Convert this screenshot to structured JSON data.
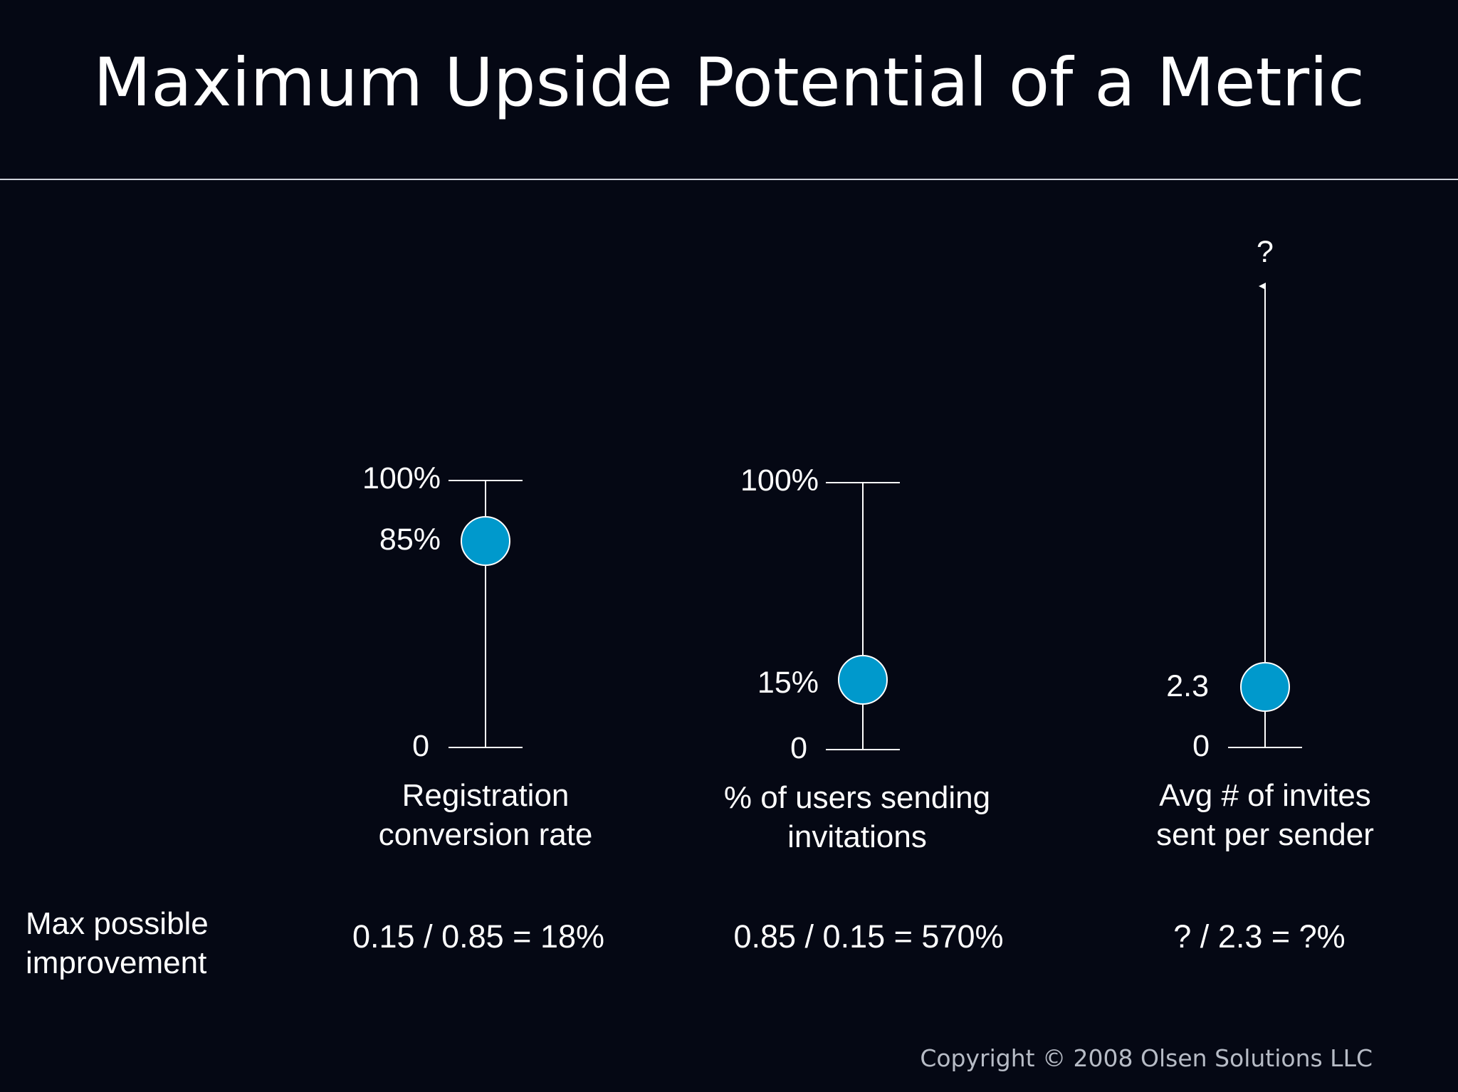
{
  "title": "Maximum Upside Potential of a Metric",
  "colors": {
    "background": "#050814",
    "marker": "#0099cc",
    "line": "#ffffff",
    "text": "#ffffff"
  },
  "metrics": [
    {
      "top_label": "100%",
      "value_label": "85%",
      "bottom_label": "0",
      "value_fraction": 0.85,
      "name_line1": "Registration",
      "name_line2": "conversion rate",
      "formula": "0.15 / 0.85 = 18%"
    },
    {
      "top_label": "100%",
      "value_label": "15%",
      "bottom_label": "0",
      "value_fraction": 0.15,
      "name_line1": "% of users sending",
      "name_line2": "invitations",
      "formula": "0.85 / 0.15 = 570%"
    },
    {
      "top_label": "?",
      "value_label": "2.3",
      "bottom_label": "0",
      "open_ended": true,
      "name_line1": "Avg # of invites",
      "name_line2": "sent per sender",
      "formula": "? / 2.3 = ?%"
    }
  ],
  "improvement_label_line1": "Max possible",
  "improvement_label_line2": "improvement",
  "copyright": "Copyright © 2008 Olsen Solutions LLC"
}
